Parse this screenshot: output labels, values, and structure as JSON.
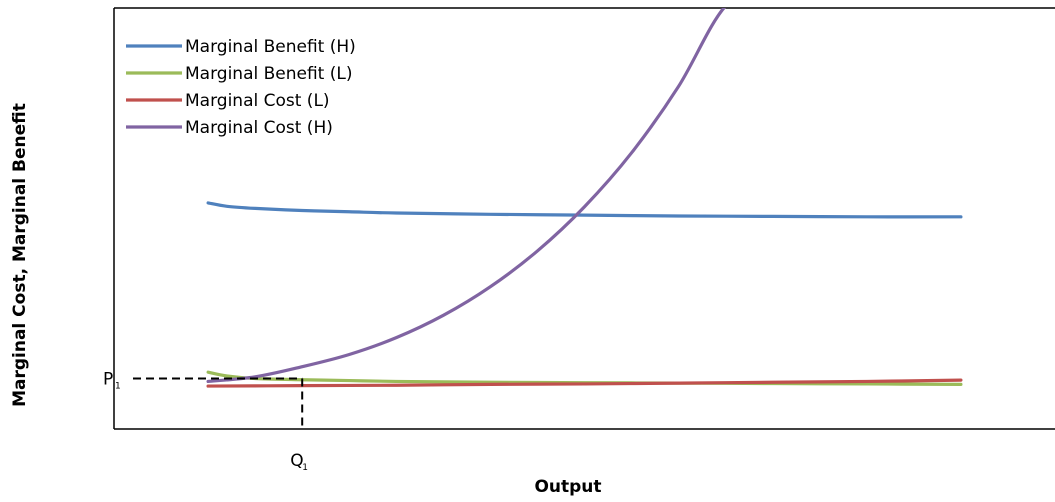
{
  "chart_data": {
    "type": "line",
    "xlabel": "Output",
    "ylabel": "Marginal Cost, Marginal Benefit",
    "xlim": [
      0,
      100
    ],
    "ylim": [
      0,
      100
    ],
    "grid": false,
    "legend_position": "top-left",
    "series": [
      {
        "name": "Marginal Benefit (H)",
        "color": "#4f81bd",
        "x": [
          10,
          12,
          15,
          20,
          25,
          30,
          40,
          50,
          60,
          70,
          80,
          90
        ],
        "y": [
          53.7,
          52.9,
          52.4,
          51.9,
          51.6,
          51.3,
          51.0,
          50.8,
          50.6,
          50.5,
          50.4,
          50.4
        ]
      },
      {
        "name": "Marginal Benefit (L)",
        "color": "#9bbb59",
        "x": [
          10,
          12,
          15,
          20,
          25,
          30,
          40,
          50,
          60,
          70,
          80,
          90
        ],
        "y": [
          13.5,
          12.6,
          12.0,
          11.7,
          11.5,
          11.3,
          11.1,
          11.0,
          10.9,
          10.8,
          10.7,
          10.6
        ]
      },
      {
        "name": "Marginal Cost (L)",
        "color": "#c0504d",
        "x": [
          10,
          20,
          30,
          40,
          50,
          60,
          70,
          80,
          90
        ],
        "y": [
          10.2,
          10.3,
          10.4,
          10.6,
          10.7,
          10.9,
          11.1,
          11.3,
          11.6
        ]
      },
      {
        "name": "Marginal Cost (H)",
        "color": "#8064a2",
        "x": [
          10,
          15,
          20,
          25,
          30,
          35,
          40,
          45,
          50,
          55,
          60,
          65,
          70
        ],
        "y": [
          11.3,
          12.4,
          14.8,
          17.7,
          21.7,
          27.0,
          33.8,
          42.3,
          52.8,
          65.6,
          81.4,
          100.5,
          106.0
        ]
      }
    ],
    "annotations": [
      {
        "label": "P",
        "subscript": "1",
        "axis": "y",
        "value": 12.0
      },
      {
        "label": "Q",
        "subscript": "1",
        "axis": "x",
        "value": 20.0
      }
    ]
  }
}
